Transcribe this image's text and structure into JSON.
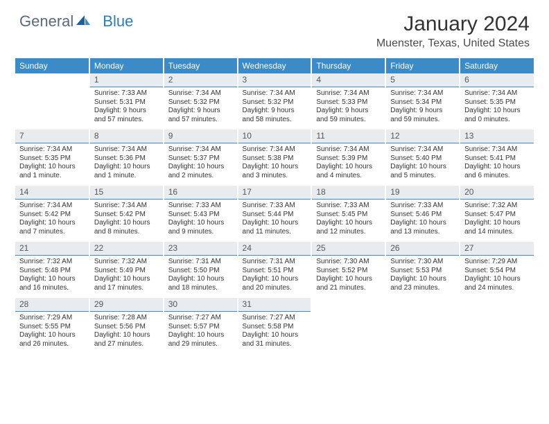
{
  "brand": {
    "part1": "General",
    "part2": "Blue"
  },
  "title": "January 2024",
  "location": "Muenster, Texas, United States",
  "header_color": "#3b8bc9",
  "daynum_bg": "#e8ecef",
  "divider_color": "#3b8bc9",
  "weekdays": [
    "Sunday",
    "Monday",
    "Tuesday",
    "Wednesday",
    "Thursday",
    "Friday",
    "Saturday"
  ],
  "cells": [
    {
      "blank": true
    },
    {
      "day": "1",
      "sunrise": "Sunrise: 7:33 AM",
      "sunset": "Sunset: 5:31 PM",
      "daylight": "Daylight: 9 hours and 57 minutes."
    },
    {
      "day": "2",
      "sunrise": "Sunrise: 7:34 AM",
      "sunset": "Sunset: 5:32 PM",
      "daylight": "Daylight: 9 hours and 57 minutes."
    },
    {
      "day": "3",
      "sunrise": "Sunrise: 7:34 AM",
      "sunset": "Sunset: 5:32 PM",
      "daylight": "Daylight: 9 hours and 58 minutes."
    },
    {
      "day": "4",
      "sunrise": "Sunrise: 7:34 AM",
      "sunset": "Sunset: 5:33 PM",
      "daylight": "Daylight: 9 hours and 59 minutes."
    },
    {
      "day": "5",
      "sunrise": "Sunrise: 7:34 AM",
      "sunset": "Sunset: 5:34 PM",
      "daylight": "Daylight: 9 hours and 59 minutes."
    },
    {
      "day": "6",
      "sunrise": "Sunrise: 7:34 AM",
      "sunset": "Sunset: 5:35 PM",
      "daylight": "Daylight: 10 hours and 0 minutes."
    },
    {
      "day": "7",
      "sunrise": "Sunrise: 7:34 AM",
      "sunset": "Sunset: 5:35 PM",
      "daylight": "Daylight: 10 hours and 1 minute."
    },
    {
      "day": "8",
      "sunrise": "Sunrise: 7:34 AM",
      "sunset": "Sunset: 5:36 PM",
      "daylight": "Daylight: 10 hours and 1 minute."
    },
    {
      "day": "9",
      "sunrise": "Sunrise: 7:34 AM",
      "sunset": "Sunset: 5:37 PM",
      "daylight": "Daylight: 10 hours and 2 minutes."
    },
    {
      "day": "10",
      "sunrise": "Sunrise: 7:34 AM",
      "sunset": "Sunset: 5:38 PM",
      "daylight": "Daylight: 10 hours and 3 minutes."
    },
    {
      "day": "11",
      "sunrise": "Sunrise: 7:34 AM",
      "sunset": "Sunset: 5:39 PM",
      "daylight": "Daylight: 10 hours and 4 minutes."
    },
    {
      "day": "12",
      "sunrise": "Sunrise: 7:34 AM",
      "sunset": "Sunset: 5:40 PM",
      "daylight": "Daylight: 10 hours and 5 minutes."
    },
    {
      "day": "13",
      "sunrise": "Sunrise: 7:34 AM",
      "sunset": "Sunset: 5:41 PM",
      "daylight": "Daylight: 10 hours and 6 minutes."
    },
    {
      "day": "14",
      "sunrise": "Sunrise: 7:34 AM",
      "sunset": "Sunset: 5:42 PM",
      "daylight": "Daylight: 10 hours and 7 minutes."
    },
    {
      "day": "15",
      "sunrise": "Sunrise: 7:34 AM",
      "sunset": "Sunset: 5:42 PM",
      "daylight": "Daylight: 10 hours and 8 minutes."
    },
    {
      "day": "16",
      "sunrise": "Sunrise: 7:33 AM",
      "sunset": "Sunset: 5:43 PM",
      "daylight": "Daylight: 10 hours and 9 minutes."
    },
    {
      "day": "17",
      "sunrise": "Sunrise: 7:33 AM",
      "sunset": "Sunset: 5:44 PM",
      "daylight": "Daylight: 10 hours and 11 minutes."
    },
    {
      "day": "18",
      "sunrise": "Sunrise: 7:33 AM",
      "sunset": "Sunset: 5:45 PM",
      "daylight": "Daylight: 10 hours and 12 minutes."
    },
    {
      "day": "19",
      "sunrise": "Sunrise: 7:33 AM",
      "sunset": "Sunset: 5:46 PM",
      "daylight": "Daylight: 10 hours and 13 minutes."
    },
    {
      "day": "20",
      "sunrise": "Sunrise: 7:32 AM",
      "sunset": "Sunset: 5:47 PM",
      "daylight": "Daylight: 10 hours and 14 minutes."
    },
    {
      "day": "21",
      "sunrise": "Sunrise: 7:32 AM",
      "sunset": "Sunset: 5:48 PM",
      "daylight": "Daylight: 10 hours and 16 minutes."
    },
    {
      "day": "22",
      "sunrise": "Sunrise: 7:32 AM",
      "sunset": "Sunset: 5:49 PM",
      "daylight": "Daylight: 10 hours and 17 minutes."
    },
    {
      "day": "23",
      "sunrise": "Sunrise: 7:31 AM",
      "sunset": "Sunset: 5:50 PM",
      "daylight": "Daylight: 10 hours and 18 minutes."
    },
    {
      "day": "24",
      "sunrise": "Sunrise: 7:31 AM",
      "sunset": "Sunset: 5:51 PM",
      "daylight": "Daylight: 10 hours and 20 minutes."
    },
    {
      "day": "25",
      "sunrise": "Sunrise: 7:30 AM",
      "sunset": "Sunset: 5:52 PM",
      "daylight": "Daylight: 10 hours and 21 minutes."
    },
    {
      "day": "26",
      "sunrise": "Sunrise: 7:30 AM",
      "sunset": "Sunset: 5:53 PM",
      "daylight": "Daylight: 10 hours and 23 minutes."
    },
    {
      "day": "27",
      "sunrise": "Sunrise: 7:29 AM",
      "sunset": "Sunset: 5:54 PM",
      "daylight": "Daylight: 10 hours and 24 minutes."
    },
    {
      "day": "28",
      "sunrise": "Sunrise: 7:29 AM",
      "sunset": "Sunset: 5:55 PM",
      "daylight": "Daylight: 10 hours and 26 minutes."
    },
    {
      "day": "29",
      "sunrise": "Sunrise: 7:28 AM",
      "sunset": "Sunset: 5:56 PM",
      "daylight": "Daylight: 10 hours and 27 minutes."
    },
    {
      "day": "30",
      "sunrise": "Sunrise: 7:27 AM",
      "sunset": "Sunset: 5:57 PM",
      "daylight": "Daylight: 10 hours and 29 minutes."
    },
    {
      "day": "31",
      "sunrise": "Sunrise: 7:27 AM",
      "sunset": "Sunset: 5:58 PM",
      "daylight": "Daylight: 10 hours and 31 minutes."
    },
    {
      "blank": true
    },
    {
      "blank": true
    },
    {
      "blank": true
    }
  ]
}
